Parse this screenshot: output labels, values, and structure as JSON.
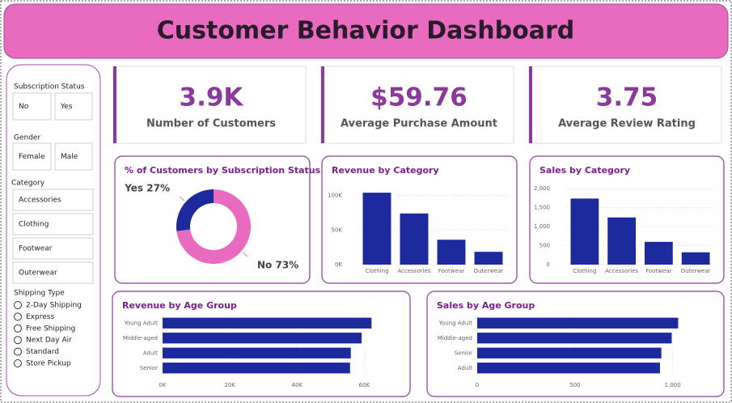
{
  "header": {
    "title": "Customer Behavior Dashboard"
  },
  "filters": {
    "subscription": {
      "label": "Subscription Status",
      "options": [
        "No",
        "Yes"
      ]
    },
    "gender": {
      "label": "Gender",
      "options": [
        "Female",
        "Male"
      ]
    },
    "category": {
      "label": "Category",
      "options": [
        "Accessories",
        "Clothing",
        "Footwear",
        "Outerwear"
      ]
    },
    "shipping": {
      "label": "Shipping Type",
      "options": [
        "2-Day Shipping",
        "Express",
        "Free Shipping",
        "Next Day Air",
        "Standard",
        "Store Pickup"
      ]
    }
  },
  "kpis": [
    {
      "value": "3.9K",
      "label": "Number of Customers"
    },
    {
      "value": "$59.76",
      "label": "Average Purchase Amount"
    },
    {
      "value": "3.75",
      "label": "Average Review Rating"
    }
  ],
  "chart_data": [
    {
      "type": "pie",
      "title": "% of Customers by Subscription Status",
      "donut": true,
      "categories": [
        "Yes",
        "No"
      ],
      "values": [
        27,
        73
      ],
      "value_labels": [
        "27%",
        "73%"
      ],
      "colors": [
        "#1c2a9e",
        "#e86bbf"
      ]
    },
    {
      "type": "bar",
      "title": "Revenue by Category",
      "categories": [
        "Clothing",
        "Accessories",
        "Footwear",
        "Outerwear"
      ],
      "values": [
        104000,
        74000,
        36000,
        18500
      ],
      "color": "#1c2a9e",
      "ylim": [
        0,
        110000
      ],
      "yticks": [
        {
          "value": 0,
          "label": "0K"
        },
        {
          "value": 50000,
          "label": "50K"
        },
        {
          "value": 100000,
          "label": "100K"
        }
      ],
      "grid": true
    },
    {
      "type": "bar",
      "title": "Sales by Category",
      "categories": [
        "Clothing",
        "Accessories",
        "Footwear",
        "Outerwear"
      ],
      "values": [
        1737,
        1240,
        599,
        324
      ],
      "color": "#1c2a9e",
      "ylim": [
        0,
        2000
      ],
      "yticks": [
        0,
        500,
        {
          "value": 1000,
          "label": "1,000"
        },
        {
          "value": 1500,
          "label": "1,500"
        },
        {
          "value": 2000,
          "label": "2,000"
        }
      ],
      "grid": true
    },
    {
      "type": "bar",
      "horizontal": true,
      "title": "Revenue by Age Group",
      "categories": [
        "Young Adult",
        "Middle-aged",
        "Adult",
        "Senior"
      ],
      "values": [
        62143,
        59197,
        55978,
        55763
      ],
      "color": "#1c2a9e",
      "xlim": [
        0,
        70000
      ],
      "xticks": [
        {
          "value": 0,
          "label": "0K"
        },
        {
          "value": 20000,
          "label": "20K"
        },
        {
          "value": 40000,
          "label": "40K"
        },
        {
          "value": 60000,
          "label": "60K"
        }
      ],
      "grid": true
    },
    {
      "type": "bar",
      "horizontal": true,
      "title": "Sales by Age Group",
      "categories": [
        "Young Adult",
        "Middle-aged",
        "Senior",
        "Adult"
      ],
      "values": [
        1028,
        995,
        942,
        935
      ],
      "color": "#1c2a9e",
      "xlim": [
        0,
        1200
      ],
      "xticks": [
        0,
        500,
        {
          "value": 1000,
          "label": "1,000"
        }
      ],
      "grid": true
    }
  ]
}
